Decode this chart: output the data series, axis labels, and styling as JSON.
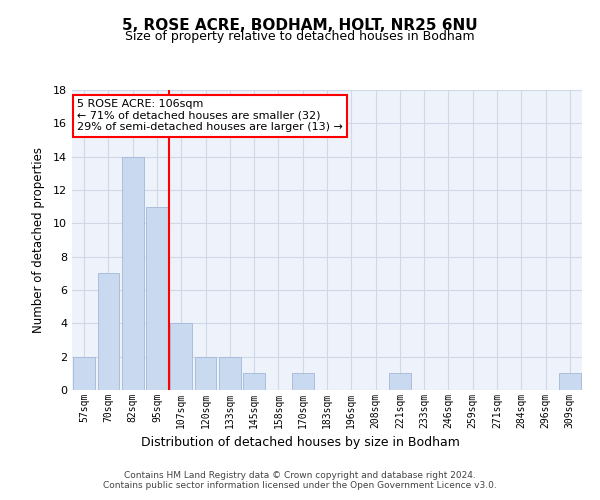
{
  "title1": "5, ROSE ACRE, BODHAM, HOLT, NR25 6NU",
  "title2": "Size of property relative to detached houses in Bodham",
  "xlabel": "Distribution of detached houses by size in Bodham",
  "ylabel": "Number of detached properties",
  "categories": [
    "57sqm",
    "70sqm",
    "82sqm",
    "95sqm",
    "107sqm",
    "120sqm",
    "133sqm",
    "145sqm",
    "158sqm",
    "170sqm",
    "183sqm",
    "196sqm",
    "208sqm",
    "221sqm",
    "233sqm",
    "246sqm",
    "259sqm",
    "271sqm",
    "284sqm",
    "296sqm",
    "309sqm"
  ],
  "values": [
    2,
    7,
    14,
    11,
    4,
    2,
    2,
    1,
    0,
    1,
    0,
    0,
    0,
    1,
    0,
    0,
    0,
    0,
    0,
    0,
    1
  ],
  "bar_color": "#c8d9f0",
  "bar_edge_color": "#a0b8d8",
  "grid_color": "#d0d8e8",
  "background_color": "#eef2fa",
  "vline_x_index": 3.5,
  "vline_color": "red",
  "annotation_text": "5 ROSE ACRE: 106sqm\n← 71% of detached houses are smaller (32)\n29% of semi-detached houses are larger (13) →",
  "annotation_box_color": "white",
  "annotation_box_edge": "red",
  "ylim": [
    0,
    18
  ],
  "yticks": [
    0,
    2,
    4,
    6,
    8,
    10,
    12,
    14,
    16,
    18
  ],
  "footer": "Contains HM Land Registry data © Crown copyright and database right 2024.\nContains public sector information licensed under the Open Government Licence v3.0.",
  "title1_fontsize": 11,
  "title2_fontsize": 9
}
